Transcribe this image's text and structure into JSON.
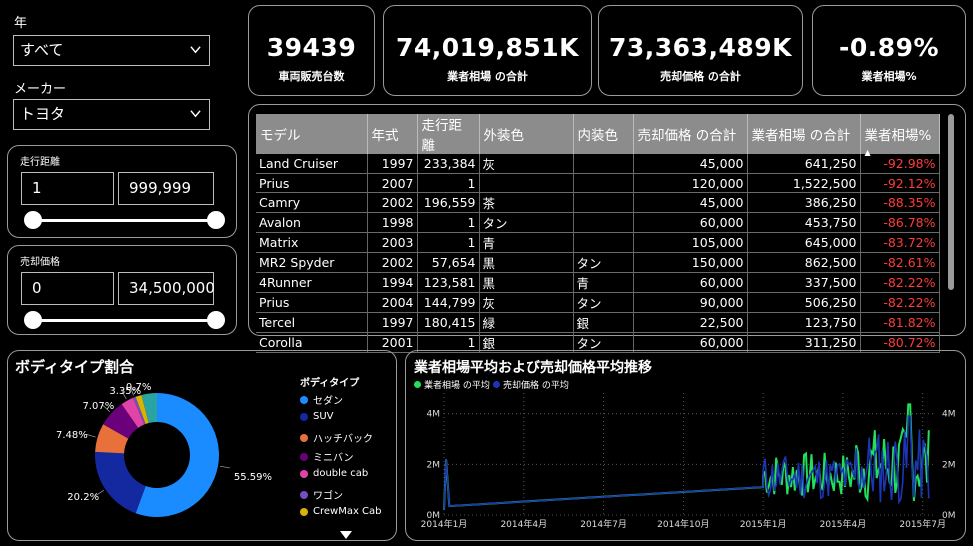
{
  "filters": {
    "year": {
      "label": "年",
      "value": "すべて"
    },
    "maker": {
      "label": "メーカー",
      "value": "トヨタ"
    },
    "mileage": {
      "label": "走行距離",
      "min": "1",
      "max": "999,999"
    },
    "price": {
      "label": "売却価格",
      "min": "0",
      "max": "34,500,000"
    }
  },
  "kpis": [
    {
      "value": "39439",
      "caption": "車両販売台数"
    },
    {
      "value": "74,019,851K",
      "caption": "業者相場 の合計"
    },
    {
      "value": "73,363,489K",
      "caption": "売却価格 の合計"
    },
    {
      "value": "-0.89%",
      "caption": "業者相場%"
    }
  ],
  "table": {
    "columns": [
      "モデル",
      "年式",
      "走行距離",
      "外装色",
      "内装色",
      "売却価格 の合計",
      "業者相場 の合計",
      "業者相場%"
    ],
    "sort_indicator": "▲",
    "rows": [
      [
        "Land Cruiser",
        "1997",
        "233,384",
        "灰",
        "",
        "45,000",
        "641,250",
        "-92.98%"
      ],
      [
        "Prius",
        "2007",
        "1",
        "",
        "",
        "120,000",
        "1,522,500",
        "-92.12%"
      ],
      [
        "Camry",
        "2002",
        "196,559",
        "茶",
        "",
        "45,000",
        "386,250",
        "-88.35%"
      ],
      [
        "Avalon",
        "1998",
        "1",
        "タン",
        "",
        "60,000",
        "453,750",
        "-86.78%"
      ],
      [
        "Matrix",
        "2003",
        "1",
        "青",
        "",
        "105,000",
        "645,000",
        "-83.72%"
      ],
      [
        "MR2 Spyder",
        "2002",
        "57,654",
        "黒",
        "タン",
        "150,000",
        "862,500",
        "-82.61%"
      ],
      [
        "4Runner",
        "1994",
        "123,581",
        "黒",
        "青",
        "60,000",
        "337,500",
        "-82.22%"
      ],
      [
        "Prius",
        "2004",
        "144,799",
        "灰",
        "タン",
        "90,000",
        "506,250",
        "-82.22%"
      ],
      [
        "Tercel",
        "1997",
        "180,415",
        "緑",
        "銀",
        "22,500",
        "123,750",
        "-81.82%"
      ],
      [
        "Corolla",
        "2001",
        "1",
        "銀",
        "タン",
        "60,000",
        "311,250",
        "-80.72%"
      ]
    ]
  },
  "donut": {
    "title": "ボディタイプ割合",
    "legend_title": "ボディタイプ",
    "more_icon": "triangle-down-icon",
    "slices": [
      {
        "name": "セダン",
        "pct": 55.59,
        "label": "55.59%",
        "color": "#1a8cff"
      },
      {
        "name": "SUV",
        "pct": 20.2,
        "label": "20.2%",
        "color": "#1428a0"
      },
      {
        "name": "ハッチバック",
        "pct": 7.48,
        "label": "7.48%",
        "color": "#e8703a"
      },
      {
        "name": "ミニバン",
        "pct": 7.07,
        "label": "7.07%",
        "color": "#6b007b"
      },
      {
        "name": "double cab",
        "pct": 3.35,
        "label": "3.35%",
        "color": "#e044a7"
      },
      {
        "name": "ワゴン",
        "pct": 0.7,
        "label": "0.7%",
        "color": "#744ec2"
      },
      {
        "name": "CrewMax Cab",
        "pct": 1.6,
        "label": "",
        "color": "#d9b300"
      },
      {
        "name": "",
        "pct": 4.01,
        "label": "",
        "color": "#2aa3a3"
      }
    ]
  },
  "chart_data": {
    "type": "line",
    "title": "業者相場平均および売却価格平均推移",
    "series": [
      {
        "name": "業者相場 の平均",
        "color": "#21e05b"
      },
      {
        "name": "売却価格 の平均",
        "color": "#1d35b5"
      }
    ],
    "x_ticks": [
      "2014年1月",
      "2014年4月",
      "2014年7月",
      "2014年10月",
      "2015年1月",
      "2015年4月",
      "2015年7月"
    ],
    "y_ticks": [
      "0M",
      "2M",
      "4M"
    ],
    "ylim": [
      0,
      4500000
    ],
    "x_start": "2014-01",
    "x_end": "2015-07",
    "grid": true
  }
}
